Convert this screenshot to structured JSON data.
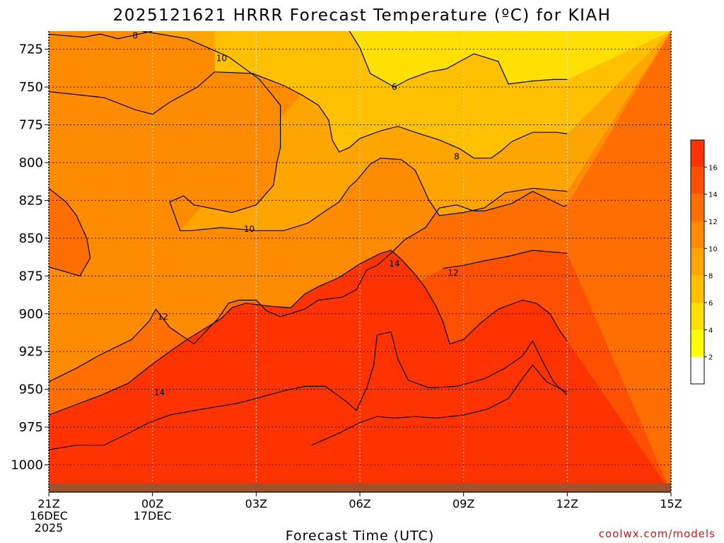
{
  "chart_data": {
    "type": "heatmap",
    "title": "2025121621 HRRR Forecast Temperature (ºC) for KIAH",
    "xlabel": "Forecast Time (UTC)",
    "x_ticks": [
      {
        "time": "21Z",
        "lines": [
          "21Z",
          "16DEC",
          "2025"
        ]
      },
      {
        "time": "00Z",
        "lines": [
          "00Z",
          "17DEC"
        ]
      },
      {
        "time": "03Z",
        "lines": [
          "03Z"
        ]
      },
      {
        "time": "06Z",
        "lines": [
          "06Z"
        ]
      },
      {
        "time": "09Z",
        "lines": [
          "09Z"
        ]
      },
      {
        "time": "12Z",
        "lines": [
          "12Z"
        ]
      },
      {
        "time": "15Z",
        "lines": [
          "15Z"
        ]
      }
    ],
    "y_ticks": [
      725,
      750,
      775,
      800,
      825,
      850,
      875,
      900,
      925,
      950,
      975,
      1000
    ],
    "y_unit_axis": "pressure (hPa), inverted",
    "ylim": [
      1018,
      713
    ],
    "x_hours": [
      0,
      1,
      2,
      3,
      4,
      5,
      6,
      7,
      8,
      9,
      10,
      11,
      12,
      13,
      14,
      15,
      16,
      17,
      18
    ],
    "contour_levels": [
      2,
      4,
      6,
      8,
      10,
      12,
      14,
      16
    ],
    "colorbar_ticks": [
      2,
      4,
      6,
      8,
      10,
      12,
      14,
      16
    ],
    "colorbar_colors": [
      "#ffffff",
      "#ffff00",
      "#ffe000",
      "#ffc000",
      "#ffa500",
      "#ff8c00",
      "#ff6e00",
      "#ff4f00",
      "#ff3300"
    ],
    "isotherms": [
      {
        "level": 6,
        "label": "6",
        "points": [
          [
            8.7,
            713
          ],
          [
            9.0,
            724
          ],
          [
            9.3,
            741
          ],
          [
            10.0,
            750
          ],
          [
            10.4,
            745
          ],
          [
            11.0,
            740
          ],
          [
            11.5,
            738
          ],
          [
            12.3,
            728
          ],
          [
            13.0,
            733
          ],
          [
            13.3,
            748
          ],
          [
            14.0,
            746
          ],
          [
            14.6,
            745
          ],
          [
            15.0,
            745
          ]
        ]
      },
      {
        "level": 8,
        "label": "8",
        "points": [
          [
            0,
            715
          ],
          [
            1.0,
            717
          ],
          [
            1.5,
            715
          ],
          [
            2.0,
            718
          ],
          [
            3.0,
            713
          ]
        ]
      },
      {
        "level": 8,
        "label": "8",
        "points": [
          [
            0,
            753
          ],
          [
            1.6,
            757
          ],
          [
            2.5,
            765
          ],
          [
            3.0,
            768
          ],
          [
            3.5,
            760
          ],
          [
            4.3,
            750
          ],
          [
            4.8,
            740
          ],
          [
            5.9,
            741
          ],
          [
            6.8,
            749
          ],
          [
            7.3,
            755
          ],
          [
            7.8,
            762
          ],
          [
            8.1,
            772
          ],
          [
            8.2,
            785
          ],
          [
            8.4,
            793
          ],
          [
            8.7,
            790
          ],
          [
            9.0,
            784
          ],
          [
            9.6,
            779
          ],
          [
            10.1,
            776
          ],
          [
            10.6,
            780
          ],
          [
            11.3,
            785
          ],
          [
            11.9,
            791
          ],
          [
            12.3,
            797
          ],
          [
            12.8,
            797
          ],
          [
            13.1,
            792
          ],
          [
            13.4,
            786
          ],
          [
            14.0,
            780
          ],
          [
            14.7,
            780
          ],
          [
            15.0,
            781
          ]
        ]
      },
      {
        "level": 10,
        "label": "10",
        "points": [
          [
            2.7,
            713
          ],
          [
            4.0,
            718
          ],
          [
            5.2,
            730
          ],
          [
            6.1,
            745
          ],
          [
            6.7,
            762
          ],
          [
            6.7,
            790
          ],
          [
            6.6,
            800
          ],
          [
            6.5,
            815
          ],
          [
            6.0,
            828
          ],
          [
            5.3,
            833
          ],
          [
            4.2,
            828
          ],
          [
            3.9,
            822
          ],
          [
            3.5,
            826
          ],
          [
            3.8,
            845
          ],
          [
            4.1,
            845
          ],
          [
            5.0,
            843
          ],
          [
            6.0,
            845
          ],
          [
            6.8,
            845
          ],
          [
            7.5,
            840
          ],
          [
            8.0,
            832
          ],
          [
            8.4,
            826
          ],
          [
            8.7,
            816
          ],
          [
            8.9,
            812
          ],
          [
            9.3,
            801
          ],
          [
            9.6,
            797
          ],
          [
            10.2,
            798
          ],
          [
            10.6,
            805
          ],
          [
            10.8,
            815
          ],
          [
            11.0,
            825
          ],
          [
            11.3,
            835
          ],
          [
            12.0,
            833
          ],
          [
            12.6,
            830
          ],
          [
            12.9,
            825
          ],
          [
            13.2,
            820
          ],
          [
            14.0,
            817
          ],
          [
            15.0,
            819
          ]
        ]
      },
      {
        "level": 12,
        "label": "12",
        "points": [
          [
            0,
            817
          ],
          [
            0.5,
            826
          ],
          [
            0.8,
            835
          ],
          [
            1.1,
            850
          ],
          [
            1.2,
            863
          ],
          [
            0.9,
            875
          ],
          [
            0.0,
            869
          ]
        ]
      },
      {
        "level": 12,
        "label": "12",
        "points": [
          [
            0,
            945
          ],
          [
            0.8,
            936
          ],
          [
            1.5,
            927
          ],
          [
            2.4,
            917
          ],
          [
            2.9,
            905
          ],
          [
            3.1,
            897
          ],
          [
            3.5,
            909
          ],
          [
            4.2,
            920
          ],
          [
            4.9,
            903
          ],
          [
            5.2,
            893
          ],
          [
            5.5,
            891
          ],
          [
            6.0,
            891
          ],
          [
            6.3,
            898
          ],
          [
            6.7,
            902
          ],
          [
            7.4,
            897
          ],
          [
            7.8,
            891
          ],
          [
            8.5,
            889
          ],
          [
            8.9,
            884
          ],
          [
            9.2,
            871
          ],
          [
            9.5,
            868
          ],
          [
            9.9,
            860
          ],
          [
            10.3,
            851
          ],
          [
            10.9,
            843
          ],
          [
            11.3,
            830
          ],
          [
            11.8,
            828
          ],
          [
            12.3,
            832
          ],
          [
            12.6,
            832
          ],
          [
            13.4,
            827
          ],
          [
            14.0,
            819
          ],
          [
            14.9,
            829
          ],
          [
            15.0,
            828
          ]
        ]
      },
      {
        "level": 12,
        "label": "12",
        "points": [
          [
            11.4,
            870
          ],
          [
            12.0,
            868
          ],
          [
            12.6,
            865
          ],
          [
            13.3,
            862
          ],
          [
            14.0,
            858
          ],
          [
            15.0,
            860
          ]
        ]
      },
      {
        "level": 14,
        "label": "14",
        "points": [
          [
            0,
            967
          ],
          [
            0.8,
            960
          ],
          [
            1.5,
            954
          ],
          [
            2.3,
            946
          ],
          [
            2.9,
            935
          ],
          [
            3.5,
            925
          ],
          [
            4.0,
            917
          ],
          [
            4.5,
            910
          ],
          [
            5.0,
            903
          ],
          [
            5.3,
            896
          ],
          [
            5.7,
            893
          ],
          [
            6.4,
            895
          ],
          [
            7.0,
            896
          ],
          [
            7.4,
            887
          ],
          [
            7.8,
            882
          ],
          [
            8.4,
            876
          ],
          [
            9.0,
            867
          ],
          [
            9.6,
            860
          ],
          [
            9.9,
            858
          ],
          [
            10.2,
            864
          ],
          [
            10.6,
            874
          ],
          [
            10.9,
            883
          ],
          [
            11.2,
            895
          ],
          [
            11.4,
            905
          ],
          [
            11.6,
            920
          ],
          [
            12.0,
            917
          ],
          [
            12.5,
            906
          ],
          [
            13.0,
            897
          ],
          [
            13.7,
            891
          ],
          [
            14.1,
            893
          ],
          [
            14.5,
            900
          ],
          [
            14.8,
            912
          ],
          [
            15.0,
            918
          ]
        ]
      },
      {
        "level": 16,
        "label": "",
        "points": [
          [
            0,
            990
          ],
          [
            0.8,
            987
          ],
          [
            1.6,
            987
          ],
          [
            2.4,
            978
          ],
          [
            2.9,
            972
          ],
          [
            3.5,
            967
          ],
          [
            4.2,
            964
          ],
          [
            5.0,
            961
          ],
          [
            5.5,
            959
          ],
          [
            6.0,
            956
          ],
          [
            6.8,
            951
          ],
          [
            7.4,
            948
          ],
          [
            8.0,
            948
          ],
          [
            8.6,
            958
          ],
          [
            8.9,
            964
          ],
          [
            9.2,
            949
          ],
          [
            9.4,
            934
          ],
          [
            9.5,
            914
          ],
          [
            9.9,
            912
          ],
          [
            10.1,
            930
          ],
          [
            10.4,
            944
          ],
          [
            11.0,
            949
          ],
          [
            11.8,
            948
          ],
          [
            12.6,
            943
          ],
          [
            13.2,
            936
          ],
          [
            13.7,
            928
          ],
          [
            14.0,
            918
          ],
          [
            14.3,
            932
          ],
          [
            14.6,
            945
          ],
          [
            15.0,
            954
          ]
        ]
      },
      {
        "level": 18,
        "label": "",
        "points": [
          [
            7.6,
            987
          ],
          [
            8.4,
            979
          ],
          [
            9.0,
            972
          ],
          [
            9.5,
            968
          ],
          [
            10.0,
            969
          ],
          [
            10.6,
            968
          ],
          [
            11.2,
            969
          ],
          [
            12.0,
            967
          ],
          [
            12.7,
            963
          ],
          [
            13.3,
            956
          ],
          [
            13.6,
            946
          ],
          [
            14.0,
            934
          ],
          [
            14.4,
            945
          ],
          [
            15.0,
            952
          ]
        ]
      }
    ],
    "contour_labels": [
      {
        "text": "8",
        "x": 2.5,
        "p": 716
      },
      {
        "text": "10",
        "x": 5.0,
        "p": 731
      },
      {
        "text": "6",
        "x": 10.0,
        "p": 750
      },
      {
        "text": "8",
        "x": 11.8,
        "p": 796
      },
      {
        "text": "10",
        "x": 5.8,
        "p": 844
      },
      {
        "text": "14",
        "x": 10.0,
        "p": 867
      },
      {
        "text": "12",
        "x": 11.7,
        "p": 873
      },
      {
        "text": "12",
        "x": 3.3,
        "p": 902
      },
      {
        "text": "14",
        "x": 3.2,
        "p": 952
      }
    ]
  },
  "footer": {
    "credit": "coolwx.com/models"
  }
}
